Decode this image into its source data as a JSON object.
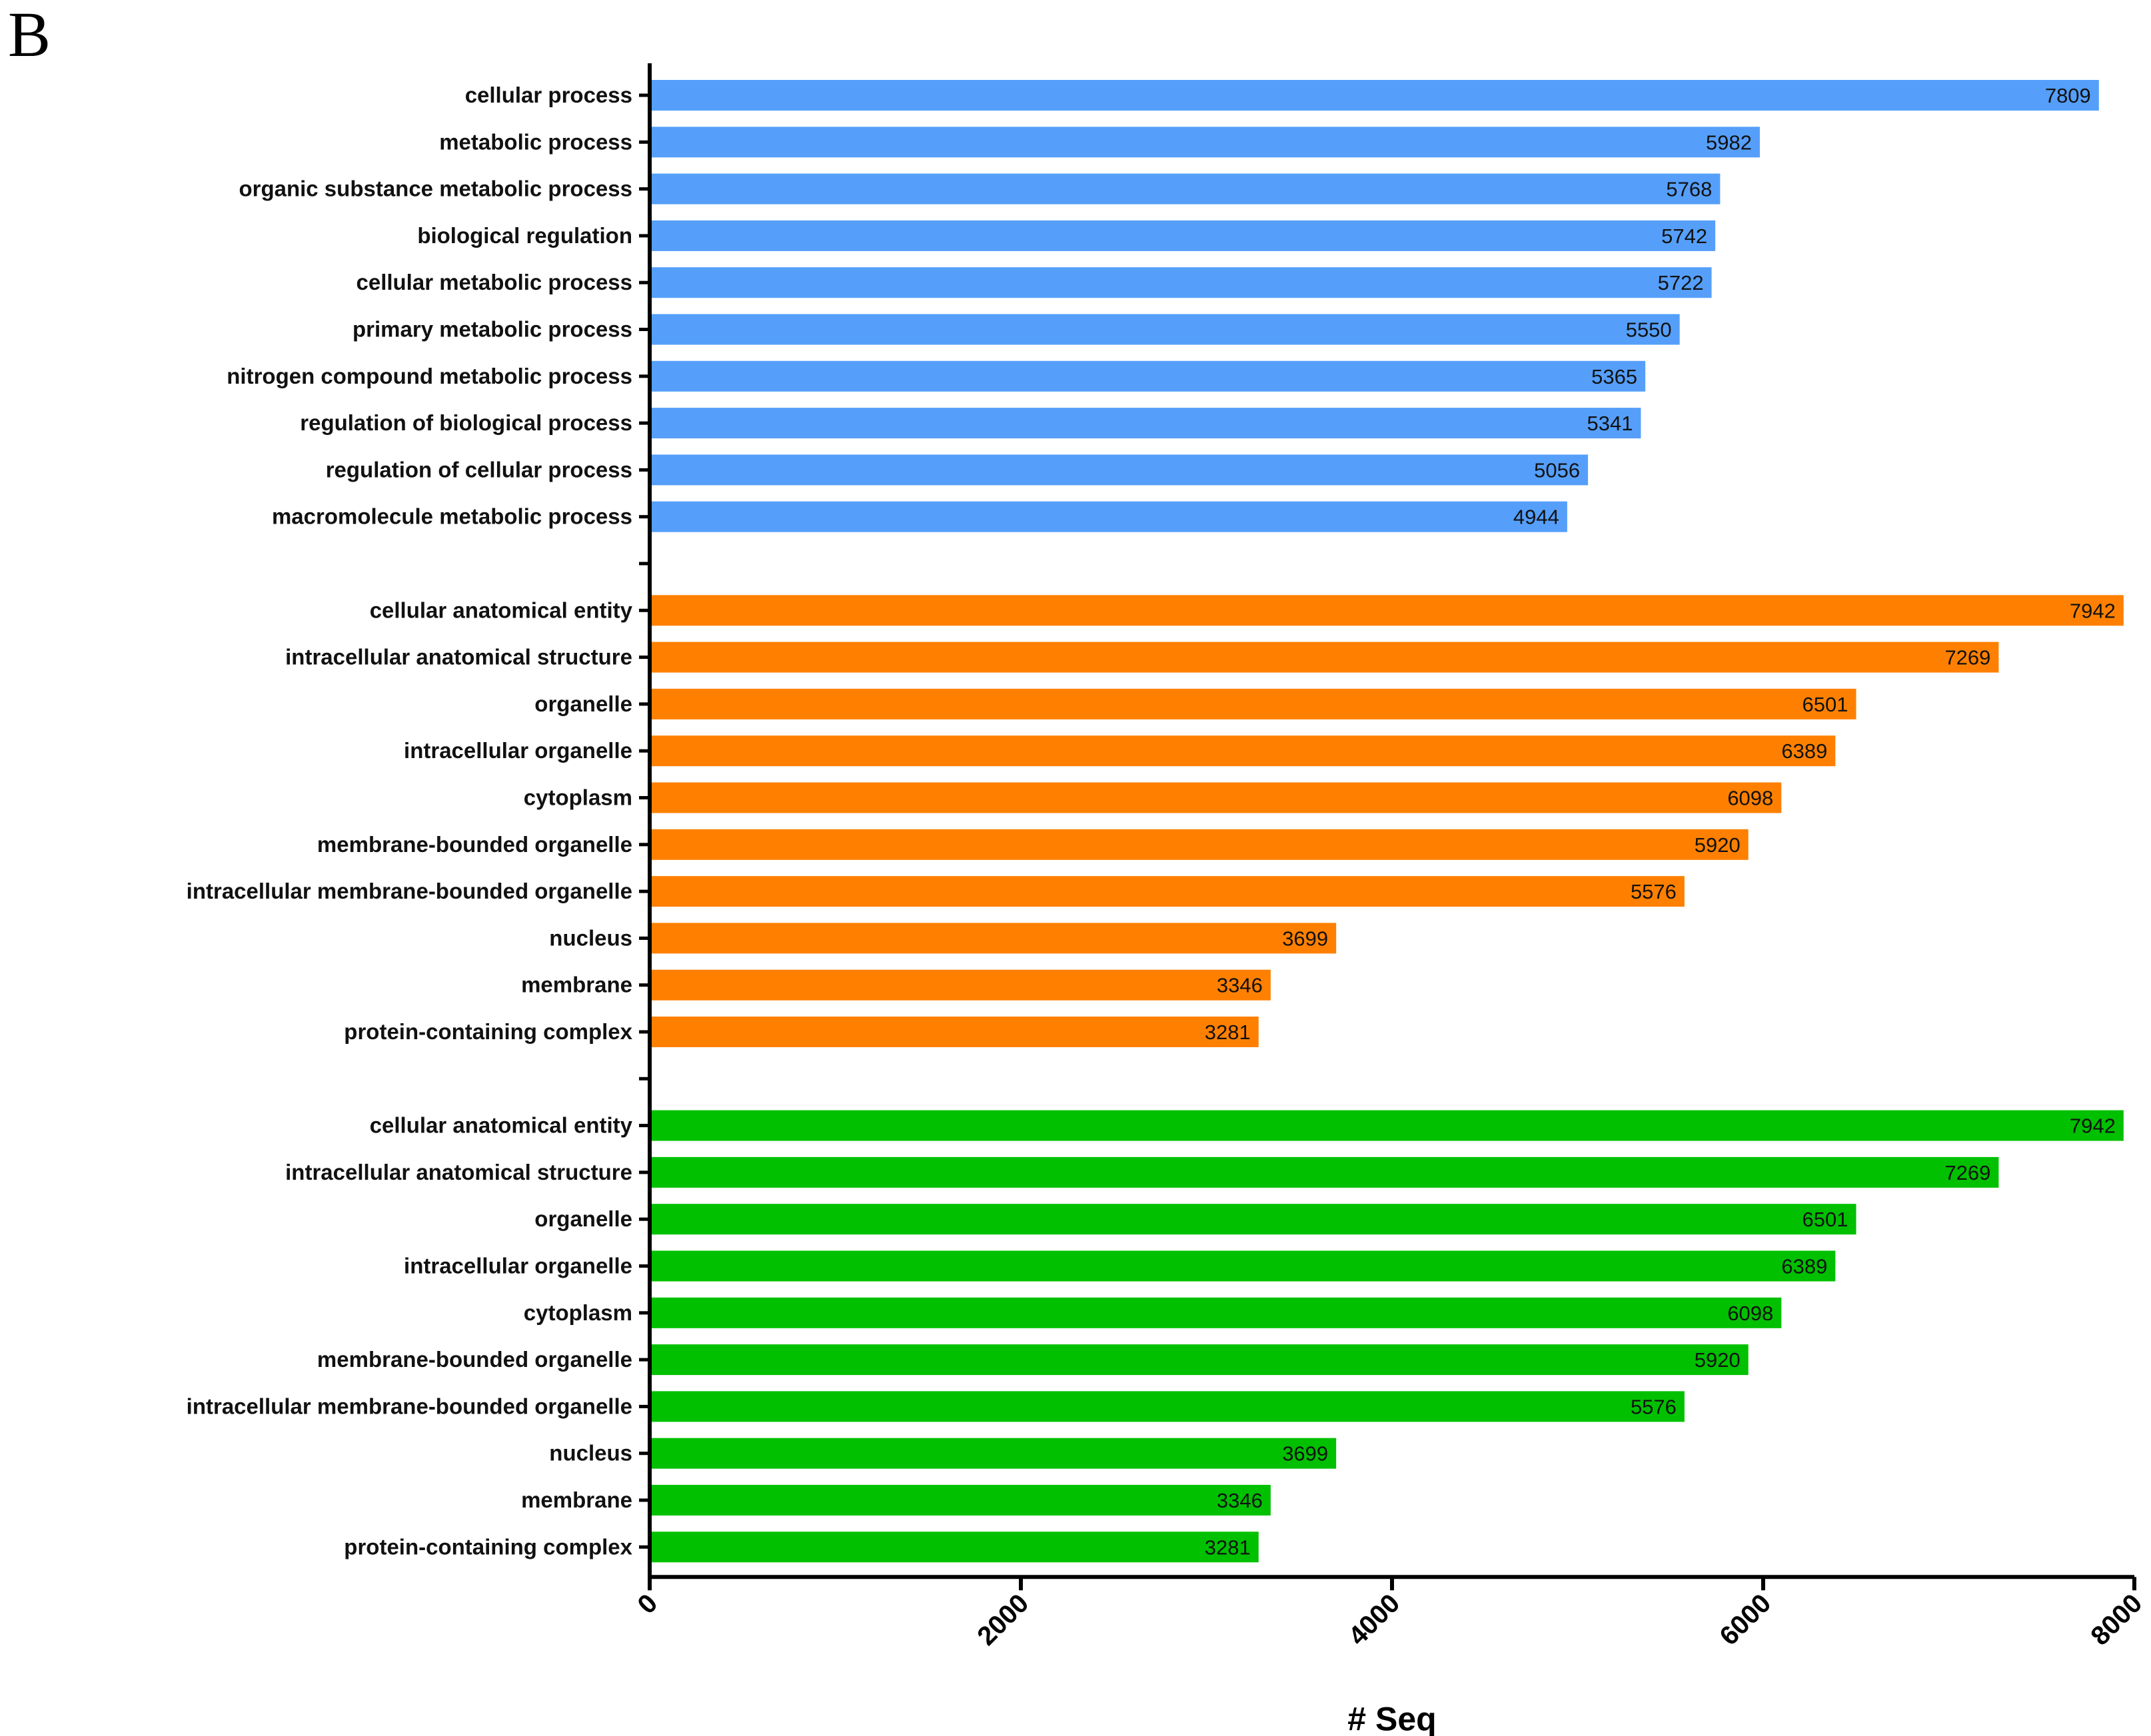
{
  "panel_label": "B",
  "chart_data": {
    "type": "bar",
    "orientation": "horizontal",
    "xlabel": "# Seq",
    "xlim": [
      0,
      8000
    ],
    "xticks": [
      "0",
      "2000",
      "4000",
      "6000",
      "8000"
    ],
    "grid": false,
    "legend": "none",
    "groups": [
      {
        "color": "#559ffa",
        "categories": [
          "cellular process",
          "metabolic process",
          "organic substance metabolic process",
          "biological regulation",
          "cellular metabolic process",
          "primary metabolic process",
          "nitrogen compound metabolic process",
          "regulation of biological process",
          "regulation of cellular process",
          "macromolecule metabolic process"
        ],
        "values": [
          7809,
          5982,
          5768,
          5742,
          5722,
          5550,
          5365,
          5341,
          5056,
          4944
        ],
        "labels": [
          "7809",
          "5982",
          "5768",
          "5742",
          "5722",
          "5550",
          "5365",
          "5341",
          "5056",
          "4944"
        ]
      },
      {
        "color": "#ff8000",
        "categories": [
          "cellular anatomical entity",
          "intracellular anatomical structure",
          "organelle",
          "intracellular organelle",
          "cytoplasm",
          "membrane-bounded organelle",
          "intracellular membrane-bounded organelle",
          "nucleus",
          "membrane",
          "protein-containing complex"
        ],
        "values": [
          7942,
          7269,
          6501,
          6389,
          6098,
          5920,
          5576,
          3699,
          3346,
          3281
        ],
        "labels": [
          "7942",
          "7269",
          "6501",
          "6389",
          "6098",
          "5920",
          "5576",
          "3699",
          "3346",
          "3281"
        ]
      },
      {
        "color": "#00c000",
        "categories": [
          "cellular anatomical entity",
          "intracellular anatomical structure",
          "organelle",
          "intracellular organelle",
          "cytoplasm",
          "membrane-bounded organelle",
          "intracellular membrane-bounded organelle",
          "nucleus",
          "membrane",
          "protein-containing complex"
        ],
        "values": [
          7942,
          7269,
          6501,
          6389,
          6098,
          5920,
          5576,
          3699,
          3346,
          3281
        ],
        "labels": [
          "7942",
          "7269",
          "6501",
          "6389",
          "6098",
          "5920",
          "5576",
          "3699",
          "3346",
          "3281"
        ]
      }
    ]
  }
}
